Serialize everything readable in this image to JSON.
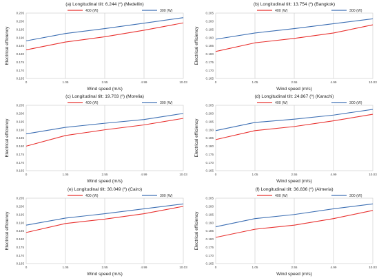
{
  "series_colors": {
    "400 (W)": "#e8312f",
    "300 (W)": "#3d6fb3"
  },
  "chart_data": [
    {
      "type": "line",
      "title": "(a) Longitudinal tilt: 6.244 (º) (Medellin)",
      "xlabel": "Wind speed (m/s)",
      "ylabel": "Electrical efficiency",
      "categories": [
        "0",
        "1.05",
        "2.55",
        "4.99",
        "10.03"
      ],
      "yticks": [
        "0.165",
        "0.170",
        "0.175",
        "0.180",
        "0.185",
        "0.190",
        "0.195",
        "0.200",
        "0.205"
      ],
      "ylim": [
        0.165,
        0.205
      ],
      "grid": "vertical",
      "legend": "top",
      "series": [
        {
          "name": "400 (W)",
          "values": [
            0.1825,
            0.1873,
            0.1905,
            0.1945,
            0.199
          ]
        },
        {
          "name": "300 (W)",
          "values": [
            0.188,
            0.1925,
            0.1955,
            0.1988,
            0.2022
          ]
        }
      ]
    },
    {
      "type": "line",
      "title": "(b) Longitudinal tilt: 13.754 (º) (Bangkok)",
      "xlabel": "Wind speed (m/s)",
      "ylabel": "Electrical efficiency",
      "categories": [
        "0",
        "1.05",
        "2.55",
        "4.99",
        "10.03"
      ],
      "yticks": [
        "0.165",
        "0.170",
        "0.175",
        "0.180",
        "0.185",
        "0.190",
        "0.195",
        "0.200",
        "0.205"
      ],
      "ylim": [
        0.165,
        0.205
      ],
      "grid": "vertical",
      "legend": "top",
      "series": [
        {
          "name": "400 (W)",
          "values": [
            0.1815,
            0.1868,
            0.1895,
            0.1928,
            0.1978
          ]
        },
        {
          "name": "300 (W)",
          "values": [
            0.189,
            0.1928,
            0.1955,
            0.1985,
            0.2015
          ]
        }
      ]
    },
    {
      "type": "line",
      "title": "(c) Longitudinal tilt: 19.703 (º) (Morelia)",
      "xlabel": "Wind speed (m/s)",
      "ylabel": "Electrical efficiency",
      "categories": [
        "0",
        "1.05",
        "2.55",
        "4.99",
        "10.03"
      ],
      "yticks": [
        "0.165",
        "0.170",
        "0.175",
        "0.180",
        "0.185",
        "0.190",
        "0.195",
        "0.200",
        "0.205"
      ],
      "ylim": [
        0.165,
        0.205
      ],
      "grid": "vertical",
      "legend": "top",
      "series": [
        {
          "name": "400 (W)",
          "values": [
            0.18,
            0.1865,
            0.19,
            0.193,
            0.197
          ]
        },
        {
          "name": "300 (W)",
          "values": [
            0.1875,
            0.1915,
            0.194,
            0.1963,
            0.2
          ]
        }
      ]
    },
    {
      "type": "line",
      "title": "(d) Longitudinal tilt: 24.867 (º) (Karachi)",
      "xlabel": "Wind speed (m/s)",
      "ylabel": "Electrical efficiency",
      "categories": [
        "0",
        "1.05",
        "2.55",
        "4.99",
        "10.03"
      ],
      "yticks": [
        "0.165",
        "0.170",
        "0.175",
        "0.180",
        "0.185",
        "0.190",
        "0.195",
        "0.200",
        "0.205"
      ],
      "ylim": [
        0.165,
        0.205
      ],
      "grid": "vertical",
      "legend": "top",
      "series": [
        {
          "name": "400 (W)",
          "values": [
            0.184,
            0.1895,
            0.192,
            0.1955,
            0.1995
          ]
        },
        {
          "name": "300 (W)",
          "values": [
            0.1895,
            0.1945,
            0.1965,
            0.199,
            0.2025
          ]
        }
      ]
    },
    {
      "type": "line",
      "title": "(e) Longitudinal tilt: 30.049 (º) (Cairo)",
      "xlabel": "Wind speed (m/s)",
      "ylabel": "Electrical efficiency",
      "categories": [
        "0",
        "1.05",
        "2.55",
        "4.99",
        "10.03"
      ],
      "yticks": [
        "0.165",
        "0.170",
        "0.175",
        "0.180",
        "0.185",
        "0.190",
        "0.195",
        "0.200",
        "0.205"
      ],
      "ylim": [
        0.165,
        0.205
      ],
      "grid": "vertical",
      "legend": "top",
      "series": [
        {
          "name": "400 (W)",
          "values": [
            0.184,
            0.1895,
            0.1922,
            0.1955,
            0.2
          ]
        },
        {
          "name": "300 (W)",
          "values": [
            0.1885,
            0.1928,
            0.1955,
            0.1985,
            0.2015
          ]
        }
      ]
    },
    {
      "type": "line",
      "title": "(f) Longitudinal tilt: 36.836 (º) (Almeria)",
      "xlabel": "Wind speed (m/s)",
      "ylabel": "Electrical efficiency",
      "categories": [
        "0",
        "1.05",
        "2.55",
        "4.99",
        "10.03"
      ],
      "yticks": [
        "0.165",
        "0.170",
        "0.175",
        "0.180",
        "0.185",
        "0.190",
        "0.195",
        "0.200",
        "0.205"
      ],
      "ylim": [
        0.165,
        0.205
      ],
      "grid": "vertical",
      "legend": "top",
      "series": [
        {
          "name": "400 (W)",
          "values": [
            0.181,
            0.186,
            0.1885,
            0.1925,
            0.1975
          ]
        },
        {
          "name": "300 (W)",
          "values": [
            0.1875,
            0.1925,
            0.195,
            0.1985,
            0.2015
          ]
        }
      ]
    }
  ]
}
